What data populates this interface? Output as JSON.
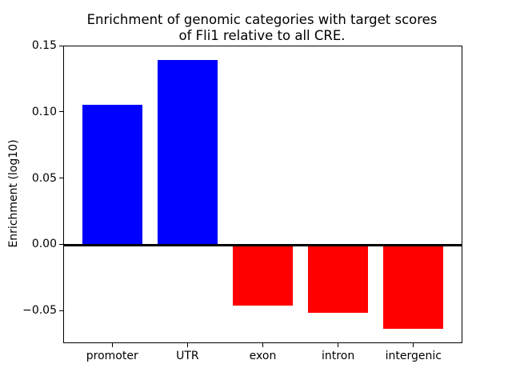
{
  "chart_data": {
    "type": "bar",
    "title": "Enrichment of genomic categories with target scores\nof Fli1 relative to all CRE.",
    "title_lines": [
      "Enrichment of genomic categories with target scores",
      "of Fli1 relative to all CRE."
    ],
    "xlabel": "",
    "ylabel": "Enrichment (log10)",
    "categories": [
      "promoter",
      "UTR",
      "exon",
      "intron",
      "intergenic"
    ],
    "values": [
      0.106,
      0.14,
      -0.046,
      -0.051,
      -0.063
    ],
    "bar_colors": [
      "#0000ff",
      "#0000ff",
      "#ff0000",
      "#ff0000",
      "#ff0000"
    ],
    "positive_color": "#0000ff",
    "negative_color": "#ff0000",
    "yticks": [
      {
        "value": -0.05,
        "label": "−0.05"
      },
      {
        "value": 0.0,
        "label": "0.00"
      },
      {
        "value": 0.05,
        "label": "0.05"
      },
      {
        "value": 0.1,
        "label": "0.10"
      },
      {
        "value": 0.15,
        "label": "0.15"
      }
    ],
    "ylim": [
      -0.0735,
      0.15
    ],
    "xlim": [
      -0.64,
      4.64
    ],
    "bar_width": 0.8,
    "zero_line": true,
    "grid": false,
    "legend": false,
    "axis_color": "#000000",
    "background_color": "#ffffff"
  }
}
